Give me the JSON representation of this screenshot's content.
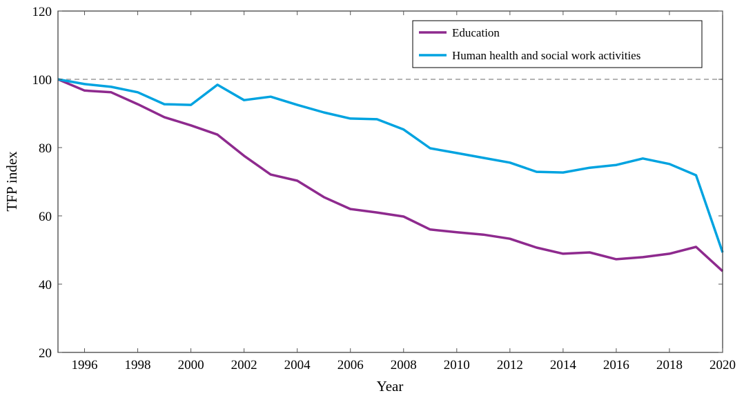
{
  "chart_data": {
    "type": "line",
    "title": "",
    "xlabel": "Year",
    "ylabel": "TFP index",
    "xlim": [
      1995,
      2020
    ],
    "ylim": [
      20,
      120
    ],
    "xticks": [
      1996,
      1998,
      2000,
      2002,
      2004,
      2006,
      2008,
      2010,
      2012,
      2014,
      2016,
      2018,
      2020
    ],
    "yticks": [
      20,
      40,
      60,
      80,
      100,
      120
    ],
    "grid": false,
    "legend_position": "top-right",
    "reference_line": {
      "y": 100,
      "style": "dashed",
      "color": "#b3b3b3"
    },
    "x": [
      1995,
      1996,
      1997,
      1998,
      1999,
      2000,
      2001,
      2002,
      2003,
      2004,
      2005,
      2006,
      2007,
      2008,
      2009,
      2010,
      2011,
      2012,
      2013,
      2014,
      2015,
      2016,
      2017,
      2018,
      2019,
      2020
    ],
    "series": [
      {
        "name": "Education",
        "color": "#8e2a8e",
        "values": [
          100,
          96.7,
          96.2,
          92.7,
          88.9,
          86.5,
          83.8,
          77.6,
          72.1,
          70.3,
          65.5,
          62.0,
          61.0,
          59.8,
          56.0,
          55.2,
          54.5,
          53.3,
          50.7,
          48.9,
          49.3,
          47.3,
          47.9,
          48.9,
          50.9,
          43.8
        ]
      },
      {
        "name": "Human health and social work activities",
        "color": "#00a3e0",
        "values": [
          100,
          98.6,
          97.8,
          96.2,
          92.7,
          92.5,
          98.4,
          93.9,
          94.9,
          92.5,
          90.3,
          88.5,
          88.3,
          85.3,
          79.8,
          78.4,
          77.0,
          75.6,
          72.9,
          72.7,
          74.1,
          74.9,
          76.8,
          75.2,
          71.9,
          49.3
        ]
      }
    ]
  }
}
